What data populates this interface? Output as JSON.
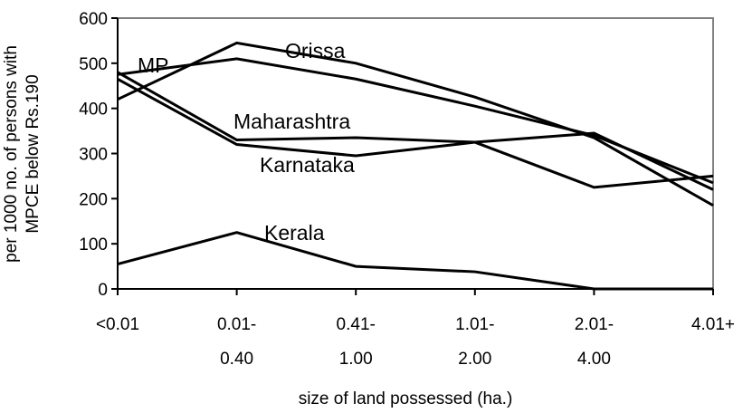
{
  "chart_data": {
    "type": "line",
    "xlabel": "size of land possessed (ha.)",
    "ylabel": [
      "per 1000 no. of persons with",
      "MPCE below Rs.190"
    ],
    "categories": [
      "<0.01",
      "0.01-0.40",
      "0.41-1.00",
      "1.01-2.00",
      "2.01-4.00",
      "4.01+"
    ],
    "series": [
      {
        "name": "Orissa",
        "color": "#000000",
        "values": [
          420,
          545,
          500,
          425,
          335,
          185
        ]
      },
      {
        "name": "MP",
        "color": "#000000",
        "values": [
          475,
          510,
          465,
          405,
          340,
          235
        ]
      },
      {
        "name": "Maharashtra",
        "color": "#000000",
        "values": [
          480,
          330,
          335,
          325,
          225,
          250
        ]
      },
      {
        "name": "Karnataka",
        "color": "#000000",
        "values": [
          465,
          320,
          295,
          325,
          345,
          220
        ]
      },
      {
        "name": "Kerala",
        "color": "#000000",
        "values": [
          55,
          125,
          50,
          38,
          0,
          0
        ]
      }
    ],
    "ylim": [
      0,
      600
    ],
    "yticks": [
      0,
      100,
      200,
      300,
      400,
      500,
      600
    ]
  }
}
